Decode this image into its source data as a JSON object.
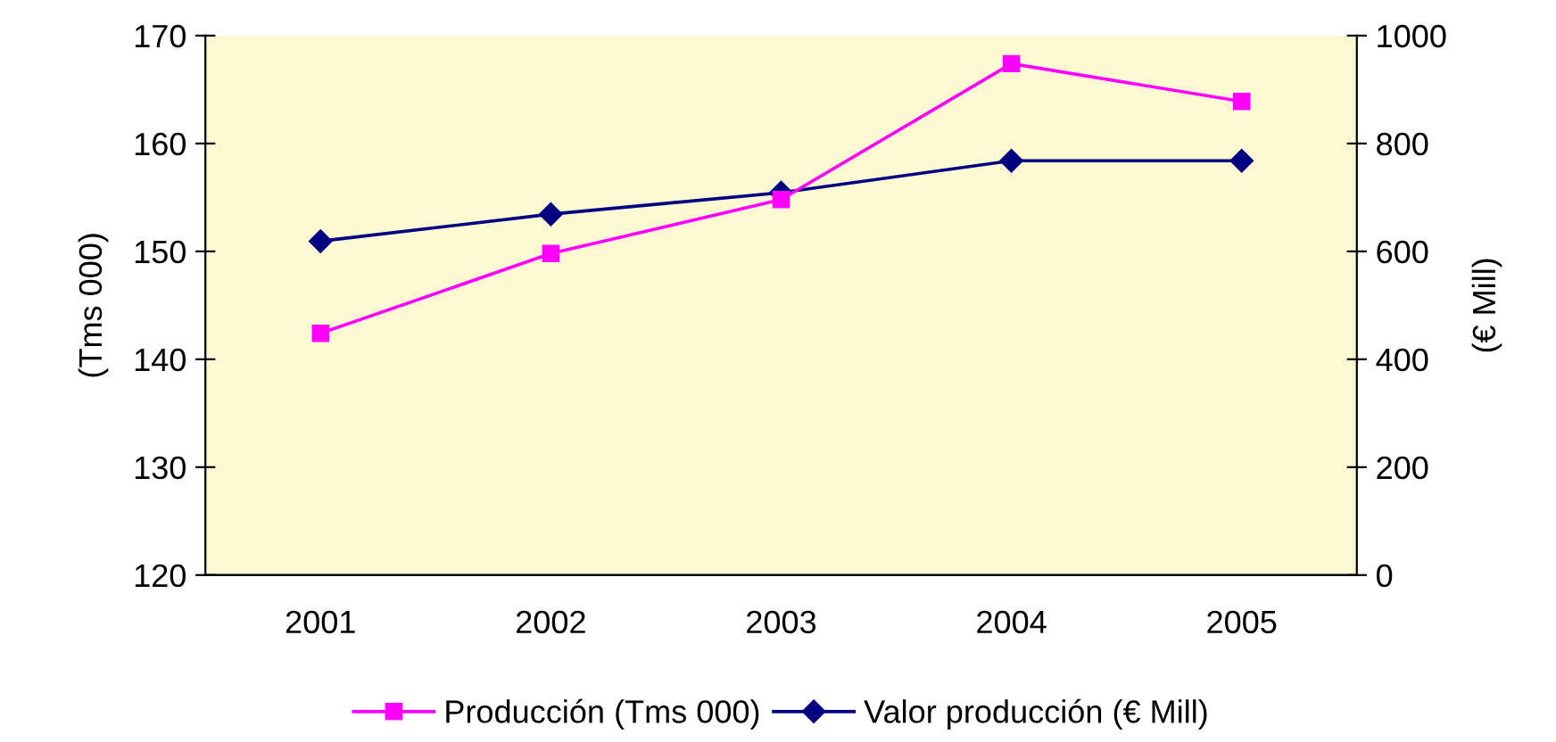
{
  "chart_data": {
    "type": "line",
    "categories": [
      "2001",
      "2002",
      "2003",
      "2004",
      "2005"
    ],
    "ylabel": "(Tms 000)",
    "y2label": "(€ Mill)",
    "ylim": [
      120,
      170
    ],
    "yticks": [
      120,
      130,
      140,
      150,
      160,
      170
    ],
    "y2lim": [
      0,
      1000
    ],
    "y2ticks": [
      0,
      200,
      400,
      600,
      800,
      1000
    ],
    "grid": false,
    "legend": "bottom",
    "line_style": "solid",
    "series": [
      {
        "name": "Producción (Tms 000)",
        "color": "#ff00ff",
        "marker": "square",
        "values": [
          142.4,
          149.8,
          154.8,
          167.4,
          163.9
        ]
      },
      {
        "name": "Valor producción (€ Mill)",
        "color": "#000080",
        "marker": "diamond",
        "axis": "y2",
        "values": [
          619,
          669,
          709,
          768,
          768
        ]
      }
    ]
  }
}
